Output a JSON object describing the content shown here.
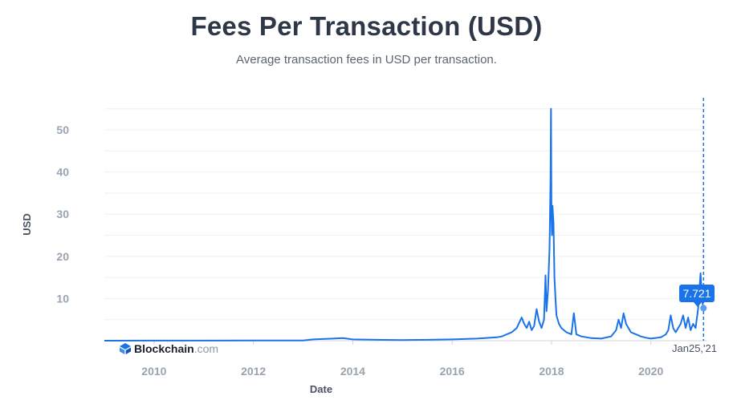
{
  "colors": {
    "line": "#1a73e8",
    "grid": "#eef0f3",
    "tooltip": "#1a73e8"
  },
  "brand": {
    "name": "Blockchain",
    "suffix": ".com",
    "icon": "blockchain-logo-icon"
  },
  "tooltip": {
    "value": "7.721",
    "date": "Jan25,'21"
  },
  "chart_data": {
    "type": "line",
    "title": "Fees Per Transaction (USD)",
    "subtitle": "Average transaction fees in USD per transaction.",
    "xlabel": "Date",
    "ylabel": "USD",
    "xlim": [
      2009.0,
      2021.12
    ],
    "ylim": [
      0,
      55
    ],
    "x_ticks": [
      2010,
      2012,
      2014,
      2016,
      2018,
      2020
    ],
    "x_tick_labels": [
      "2010",
      "2012",
      "2014",
      "2016",
      "2018",
      "2020"
    ],
    "y_ticks": [
      10,
      20,
      30,
      40,
      50
    ],
    "y_tick_labels": [
      "10",
      "20",
      "30",
      "40",
      "50"
    ],
    "grid": true,
    "legend": "none",
    "series": [
      {
        "x": [
          2009.0,
          2010.0,
          2011.0,
          2012.0,
          2013.0,
          2013.2,
          2013.6,
          2013.8,
          2014.0,
          2014.5,
          2015.0,
          2015.5,
          2016.0,
          2016.5,
          2016.9,
          2017.0,
          2017.2,
          2017.3,
          2017.4,
          2017.45,
          2017.5,
          2017.55,
          2017.6,
          2017.65,
          2017.7,
          2017.75,
          2017.8,
          2017.85,
          2017.88,
          2017.9,
          2017.93,
          2017.96,
          2017.98,
          2017.99,
          2018.0,
          2018.01,
          2018.02,
          2018.04,
          2018.06,
          2018.08,
          2018.1,
          2018.15,
          2018.2,
          2018.3,
          2018.4,
          2018.45,
          2018.5,
          2018.6,
          2018.8,
          2019.0,
          2019.2,
          2019.3,
          2019.35,
          2019.4,
          2019.45,
          2019.5,
          2019.55,
          2019.6,
          2019.7,
          2019.8,
          2019.9,
          2020.0,
          2020.2,
          2020.3,
          2020.35,
          2020.4,
          2020.45,
          2020.5,
          2020.6,
          2020.65,
          2020.7,
          2020.75,
          2020.8,
          2020.85,
          2020.9,
          2020.95,
          2021.0,
          2021.02,
          2021.04,
          2021.06
        ],
        "y": [
          0.0,
          0.01,
          0.02,
          0.03,
          0.05,
          0.3,
          0.5,
          0.6,
          0.3,
          0.2,
          0.15,
          0.2,
          0.3,
          0.5,
          0.8,
          1.0,
          2.0,
          3.0,
          5.5,
          4.0,
          3.0,
          4.5,
          2.5,
          3.5,
          7.5,
          4.5,
          3.0,
          5.0,
          15.5,
          7.0,
          12.0,
          22.0,
          38.0,
          55.0,
          30.0,
          25.0,
          32.0,
          28.0,
          15.0,
          10.0,
          6.0,
          4.0,
          3.0,
          2.0,
          1.5,
          6.5,
          1.5,
          1.0,
          0.6,
          0.5,
          1.0,
          2.5,
          5.0,
          3.0,
          6.5,
          4.0,
          3.0,
          2.0,
          1.5,
          1.0,
          0.7,
          0.5,
          0.8,
          1.5,
          2.5,
          6.0,
          3.0,
          2.0,
          4.0,
          6.0,
          3.0,
          5.5,
          2.5,
          4.0,
          3.0,
          7.5,
          16.0,
          12.0,
          9.0,
          7.721
        ]
      }
    ]
  }
}
